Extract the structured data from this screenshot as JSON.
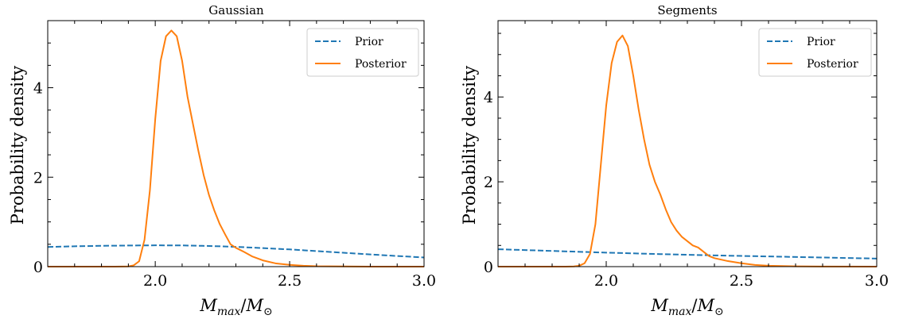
{
  "chart_data": [
    {
      "type": "line",
      "title": "Gaussian",
      "xlabel": "M_max/M_⊙",
      "ylabel": "Probability density",
      "xlim": [
        1.6,
        3.0
      ],
      "ylim": [
        0,
        5.5
      ],
      "xticks": [
        2.0,
        2.5,
        3.0
      ],
      "xtick_labels": [
        "2.0",
        "2.5",
        "3.0"
      ],
      "yticks": [
        0,
        2,
        4
      ],
      "ytick_labels": [
        "0",
        "2",
        "4"
      ],
      "legend_position": "top-right",
      "grid": false,
      "series": [
        {
          "name": "Prior",
          "style": "dashed",
          "color": "#1f77b4",
          "x": [
            1.6,
            1.7,
            1.8,
            1.9,
            2.0,
            2.1,
            2.2,
            2.3,
            2.4,
            2.5,
            2.6,
            2.7,
            2.8,
            2.9,
            3.0
          ],
          "y": [
            0.44,
            0.455,
            0.465,
            0.472,
            0.476,
            0.474,
            0.462,
            0.442,
            0.415,
            0.385,
            0.348,
            0.31,
            0.272,
            0.238,
            0.205
          ]
        },
        {
          "name": "Posterior",
          "style": "solid",
          "color": "#ff7f0e",
          "x": [
            1.6,
            1.85,
            1.9,
            1.92,
            1.94,
            1.96,
            1.98,
            2.0,
            2.02,
            2.04,
            2.06,
            2.08,
            2.1,
            2.12,
            2.14,
            2.16,
            2.18,
            2.2,
            2.22,
            2.24,
            2.26,
            2.28,
            2.3,
            2.33,
            2.36,
            2.4,
            2.45,
            2.5,
            2.55,
            2.6,
            2.7,
            2.8,
            3.0
          ],
          "y": [
            0,
            0,
            0.005,
            0.03,
            0.12,
            0.6,
            1.7,
            3.3,
            4.6,
            5.15,
            5.28,
            5.15,
            4.6,
            3.8,
            3.2,
            2.6,
            2.05,
            1.6,
            1.25,
            0.95,
            0.72,
            0.5,
            0.42,
            0.33,
            0.23,
            0.14,
            0.07,
            0.04,
            0.02,
            0.01,
            0.004,
            0.001,
            0
          ]
        }
      ]
    },
    {
      "type": "line",
      "title": "Segments",
      "xlabel": "M_max/M_⊙",
      "ylabel": "Probability density",
      "xlim": [
        1.6,
        3.0
      ],
      "ylim": [
        0,
        5.8
      ],
      "xticks": [
        2.0,
        2.5,
        3.0
      ],
      "xtick_labels": [
        "2.0",
        "2.5",
        "3.0"
      ],
      "yticks": [
        0,
        2,
        4
      ],
      "ytick_labels": [
        "0",
        "2",
        "4"
      ],
      "legend_position": "top-right",
      "grid": false,
      "series": [
        {
          "name": "Prior",
          "style": "dashed",
          "color": "#1f77b4",
          "x": [
            1.6,
            1.8,
            2.0,
            2.2,
            2.4,
            2.6,
            2.8,
            3.0
          ],
          "y": [
            0.41,
            0.37,
            0.33,
            0.295,
            0.265,
            0.24,
            0.215,
            0.19
          ]
        },
        {
          "name": "Posterior",
          "style": "solid",
          "color": "#ff7f0e",
          "x": [
            1.6,
            1.85,
            1.88,
            1.9,
            1.92,
            1.94,
            1.96,
            1.98,
            2.0,
            2.02,
            2.04,
            2.06,
            2.08,
            2.1,
            2.12,
            2.14,
            2.16,
            2.18,
            2.2,
            2.22,
            2.24,
            2.26,
            2.28,
            2.3,
            2.32,
            2.34,
            2.36,
            2.38,
            2.4,
            2.45,
            2.5,
            2.55,
            2.6,
            2.7,
            2.8,
            3.0
          ],
          "y": [
            0,
            0,
            0.005,
            0.02,
            0.08,
            0.3,
            1.0,
            2.4,
            3.8,
            4.8,
            5.3,
            5.45,
            5.2,
            4.5,
            3.7,
            3.0,
            2.4,
            2.0,
            1.7,
            1.35,
            1.05,
            0.85,
            0.7,
            0.6,
            0.5,
            0.45,
            0.35,
            0.25,
            0.2,
            0.13,
            0.08,
            0.04,
            0.02,
            0.008,
            0.002,
            0
          ]
        }
      ]
    }
  ]
}
